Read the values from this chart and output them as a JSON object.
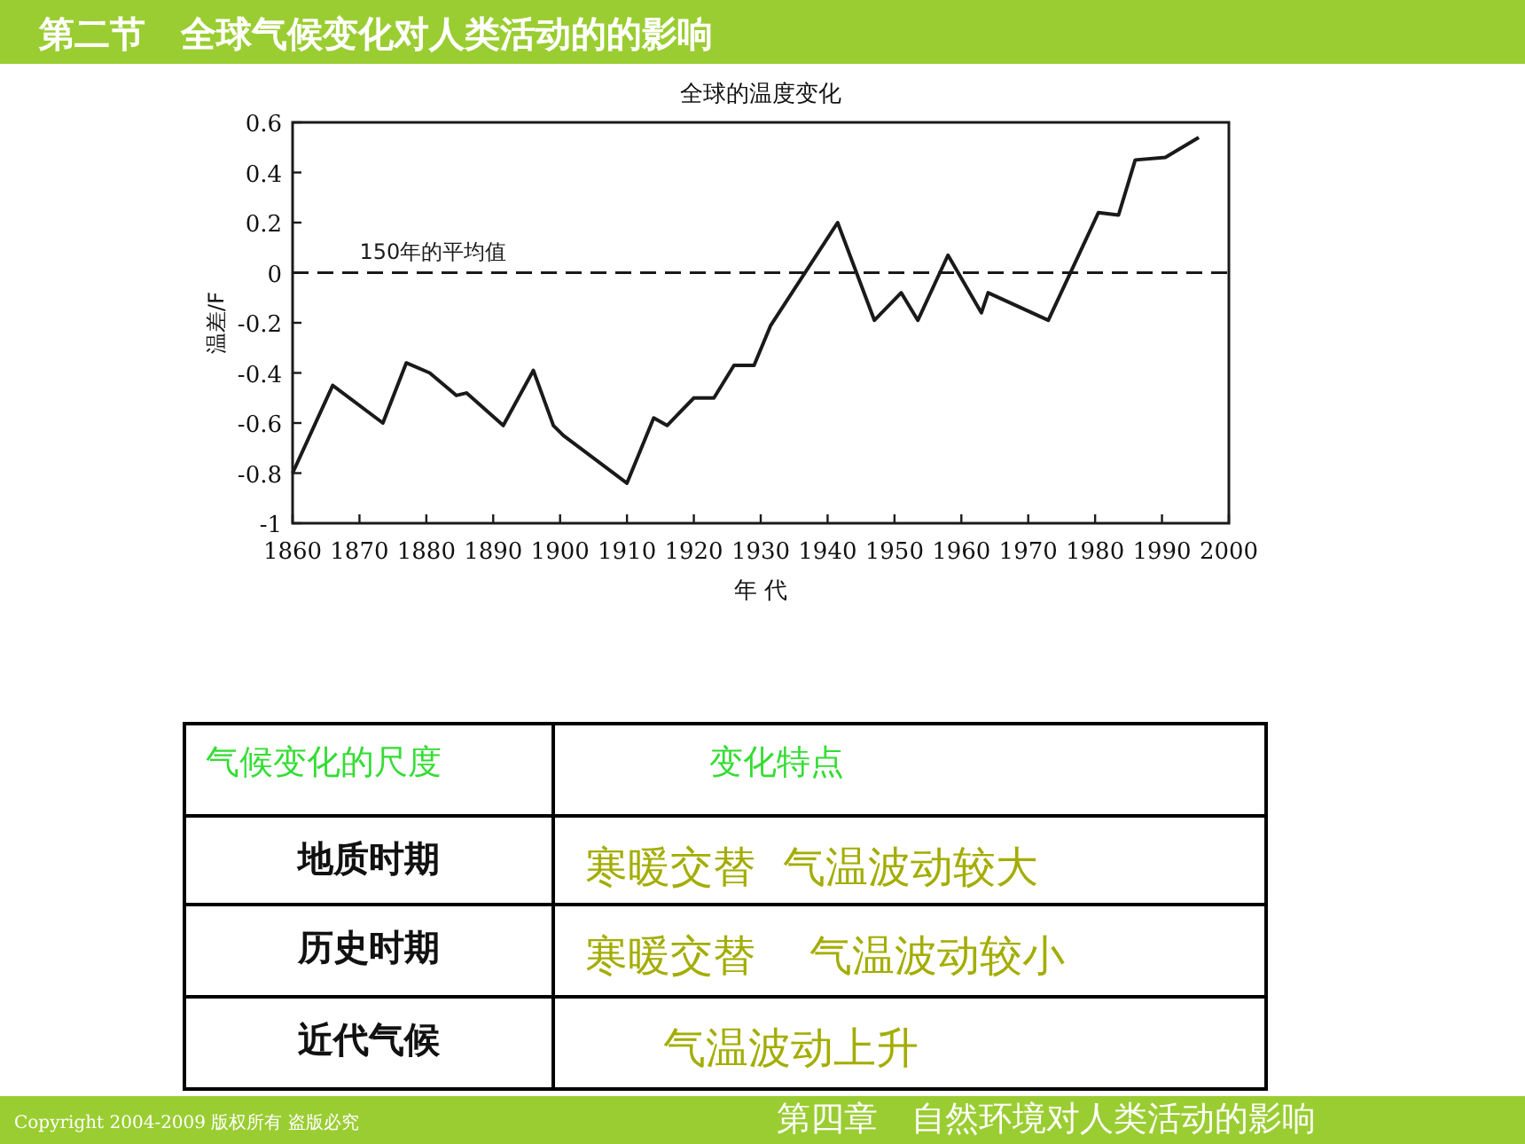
{
  "chart_data": {
    "type": "line",
    "title": "第二节　全球气候变化对人类活动的的影响",
    "subtitle": "全球的温度变化",
    "xlabel": "年 代",
    "ylabel": "温差/F",
    "x": [
      1860,
      1866,
      1873.5,
      1877,
      1880.5,
      1884.5,
      1886,
      1891.5,
      1896,
      1899,
      1900.5,
      1910,
      1914,
      1916,
      1920,
      1923,
      1926,
      1929,
      1931.5,
      1941.5,
      1947,
      1951,
      1953.5,
      1958,
      1963,
      1964,
      1973,
      1980.5,
      1983.5,
      1986,
      1990.5,
      1995.5
    ],
    "series": [
      {
        "color": "#1a1a1a",
        "values": [
          -0.8,
          -0.45,
          -0.6,
          -0.36,
          -0.4,
          -0.49,
          -0.48,
          -0.61,
          -0.39,
          -0.61,
          -0.65,
          -0.84,
          -0.58,
          -0.61,
          -0.5,
          -0.5,
          -0.37,
          -0.37,
          -0.21,
          0.2,
          -0.19,
          -0.08,
          -0.19,
          0.07,
          -0.16,
          -0.08,
          -0.19,
          0.24,
          0.23,
          0.45,
          0.46,
          0.54
        ]
      }
    ],
    "xlim": [
      1860,
      2000
    ],
    "xticks": [
      1860,
      1870,
      1880,
      1890,
      1900,
      1910,
      1920,
      1930,
      1940,
      1950,
      1960,
      1970,
      1980,
      1990,
      2000
    ],
    "ylim": [
      -1,
      0.6
    ],
    "yticks": [
      {
        "value": -1,
        "label": "-1"
      },
      {
        "value": -0.8,
        "label": "-0.8"
      },
      {
        "value": -0.6,
        "label": "-0.6"
      },
      {
        "value": -0.4,
        "label": "-0.4"
      },
      {
        "value": -0.2,
        "label": "-0.2"
      },
      0,
      0.2,
      0.4,
      0.6
    ],
    "ref_lines": [
      {
        "axis": "y",
        "value": 0,
        "label": "150年的平均值",
        "line_style": "dashed",
        "color": "#1a1a1a"
      }
    ],
    "grid": false,
    "marker": "none",
    "line_style": "solid",
    "annotations": [
      "气候变化的尺度",
      "变化特点",
      "地质时期",
      "寒暖交替  气温波动较大",
      "历史时期",
      "寒暖交替    气温波动较小",
      "近代气候",
      "气温波动上升",
      "第四章　自然环境对人类活动的影响",
      "Copyright 2004-2009 版权所有 盗版必究"
    ]
  }
}
